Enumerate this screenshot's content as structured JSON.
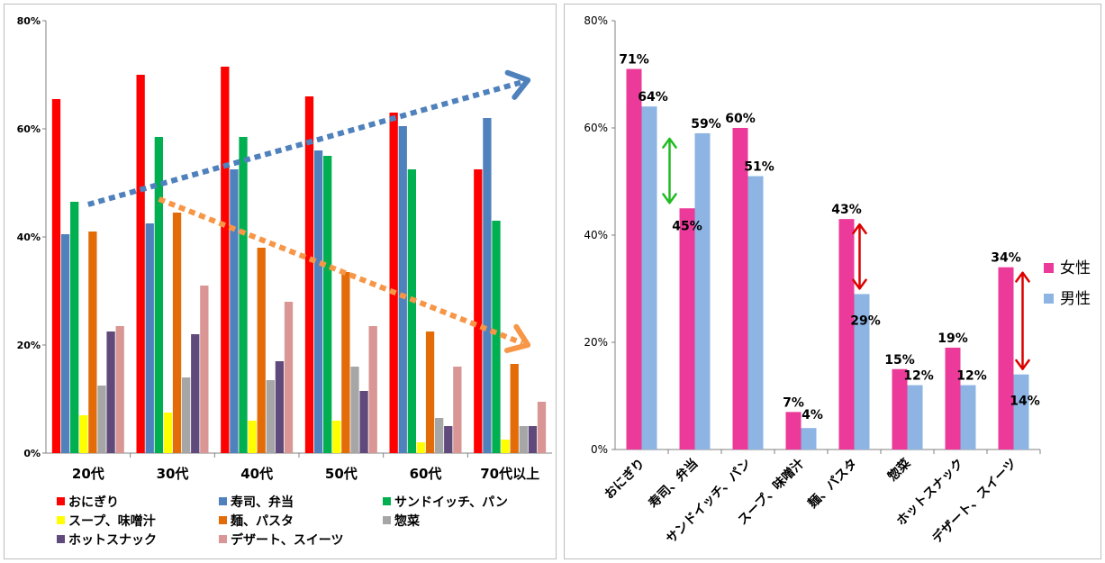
{
  "chart_data": [
    {
      "type": "bar",
      "categories": [
        "20代",
        "30代",
        "40代",
        "50代",
        "60代",
        "70代以上"
      ],
      "ylim": [
        0,
        80
      ],
      "yticks": [
        "0%",
        "20%",
        "40%",
        "60%",
        "80%"
      ],
      "legend_position": "bottom",
      "series": [
        {
          "name": "おにぎり",
          "color": "#ff0000",
          "values": [
            65.5,
            70,
            71.5,
            66,
            63,
            52.5
          ]
        },
        {
          "name": "寿司、弁当",
          "color": "#4f81bd",
          "values": [
            40.5,
            42.5,
            52.5,
            56,
            60.5,
            62
          ]
        },
        {
          "name": "サンドイッチ、パン",
          "color": "#00b050",
          "values": [
            46.5,
            58.5,
            58.5,
            55,
            52.5,
            43
          ]
        },
        {
          "name": "スープ、味噌汁",
          "color": "#ffff00",
          "values": [
            7,
            7.5,
            6,
            6,
            2,
            2.5
          ]
        },
        {
          "name": "麺、パスタ",
          "color": "#e36c09",
          "values": [
            41,
            44.5,
            38,
            33.5,
            22.5,
            16.5
          ]
        },
        {
          "name": "惣菜",
          "color": "#a6a6a6",
          "values": [
            12.5,
            14,
            13.5,
            16,
            6.5,
            5
          ]
        },
        {
          "name": "ホットスナック",
          "color": "#604a7b",
          "values": [
            22.5,
            22,
            17,
            11.5,
            5,
            5
          ]
        },
        {
          "name": "デザート、スイーツ",
          "color": "#d99694",
          "values": [
            23.5,
            31,
            28,
            23.5,
            16,
            9.5
          ]
        }
      ],
      "annotations": [
        {
          "type": "dotted-arrow",
          "color": "#4f81bd",
          "from": [
            "20代",
            46
          ],
          "to": [
            "70代以上",
            69
          ]
        },
        {
          "type": "dotted-arrow",
          "color": "#f79646",
          "from": [
            "30代",
            47
          ],
          "to": [
            "70代以上",
            20
          ]
        }
      ]
    },
    {
      "type": "bar",
      "categories": [
        "おにぎり",
        "寿司、弁当",
        "サンドイッチ、パン",
        "スープ、味噌汁",
        "麺、パスタ",
        "惣菜",
        "ホットスナック",
        "デザート、スイーツ"
      ],
      "ylim": [
        0,
        80
      ],
      "yticks": [
        "0%",
        "20%",
        "40%",
        "60%",
        "80%"
      ],
      "legend_position": "right",
      "series": [
        {
          "name": "女性",
          "color": "#ec3a9a",
          "values": [
            71,
            45,
            60,
            7,
            43,
            15,
            19,
            34
          ],
          "labels": [
            "71%",
            "45%",
            "60%",
            "7%",
            "43%",
            "15%",
            "19%",
            "34%"
          ]
        },
        {
          "name": "男性",
          "color": "#8db4e2",
          "values": [
            64,
            59,
            51,
            4,
            29,
            12,
            12,
            14
          ],
          "labels": [
            "64%",
            "59%",
            "51%",
            "4%",
            "29%",
            "12%",
            "12%",
            "14%"
          ]
        }
      ],
      "annotations": [
        {
          "type": "double-arrow",
          "color": "#22bb22",
          "category": "寿司、弁当",
          "from": 59,
          "to": 45
        },
        {
          "type": "double-arrow",
          "color": "#dd0000",
          "category": "麺、パスタ",
          "from": 43,
          "to": 29
        },
        {
          "type": "double-arrow",
          "color": "#dd0000",
          "category": "デザート、スイーツ",
          "from": 34,
          "to": 14
        }
      ]
    }
  ]
}
